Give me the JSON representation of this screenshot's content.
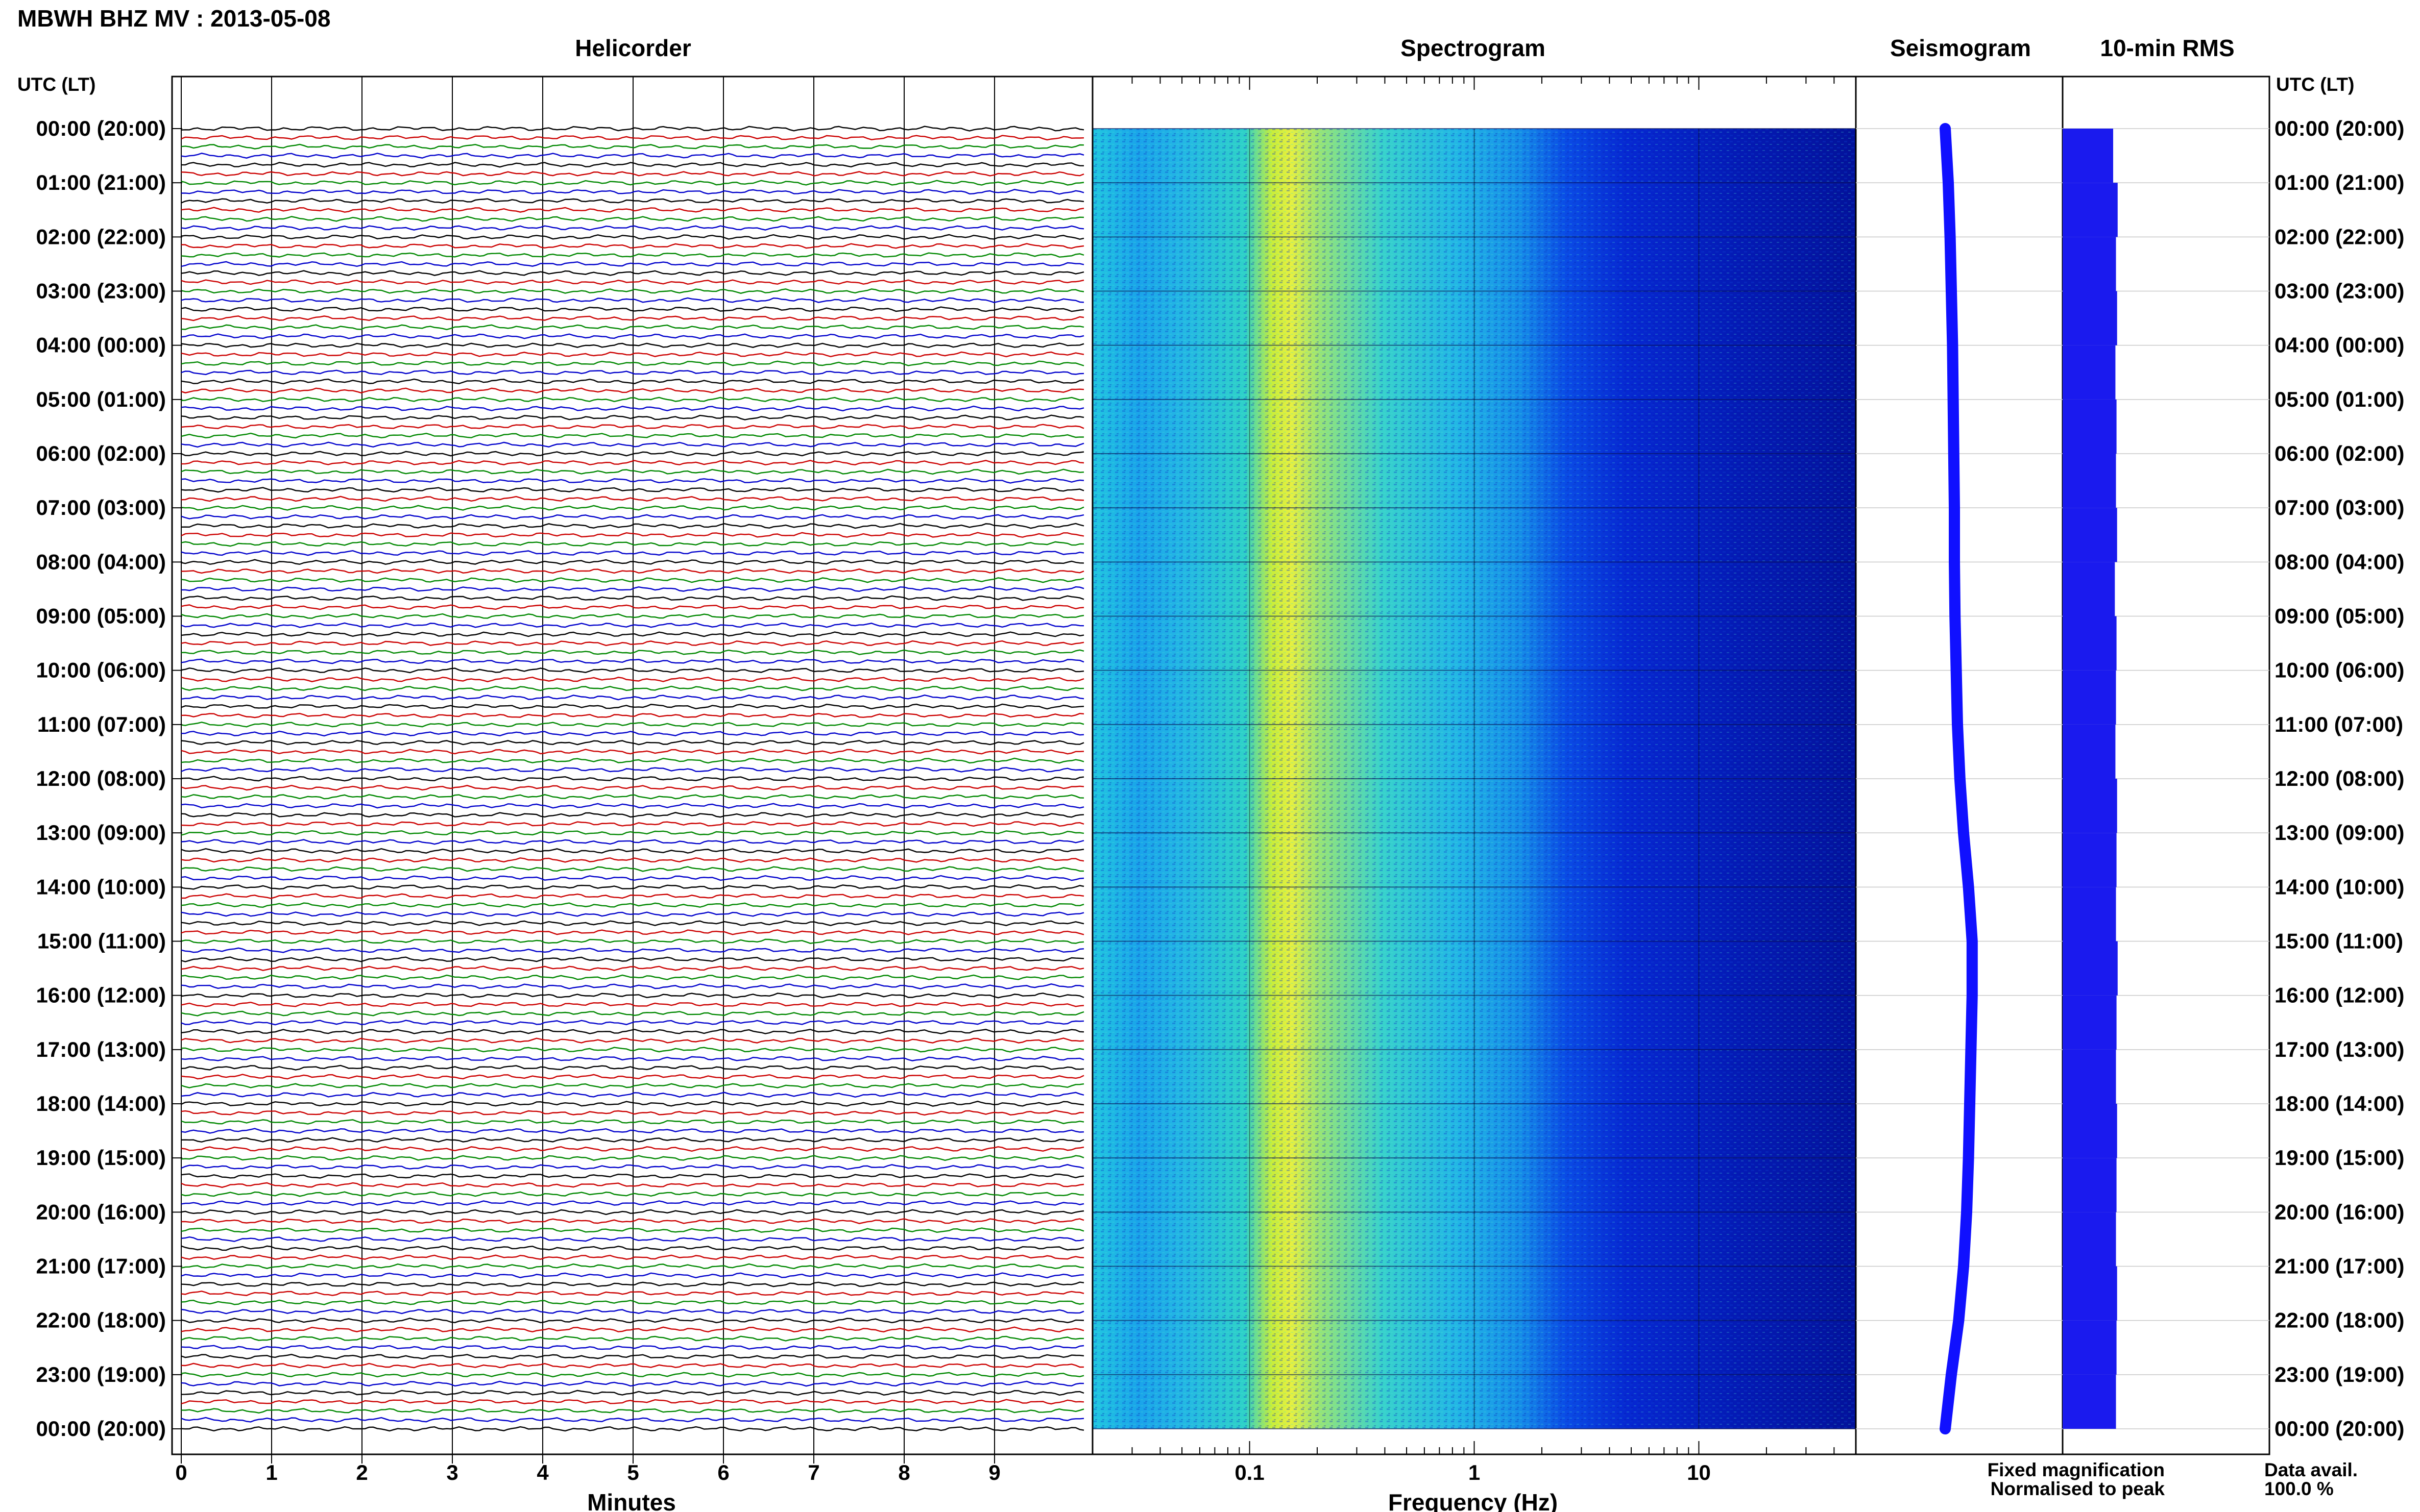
{
  "header": {
    "station_title": "MBWH BHZ MV : 2013-05-08"
  },
  "panels": {
    "helicorder_title": "Helicorder",
    "spectrogram_title": "Spectrogram",
    "seismogram_title": "Seismogram",
    "rms_title": "10-min RMS"
  },
  "axes": {
    "left_time_label": "UTC (LT)",
    "right_time_label": "UTC (LT)",
    "helicorder_xlabel": "Minutes",
    "spectrogram_xlabel": "Frequency (Hz)"
  },
  "legend": {
    "fixed": "Fixed magnification",
    "normalised": "Normalised to peak",
    "fixed_color": "#0000ff",
    "normalised_color": "#ff0000"
  },
  "footer": {
    "data_avail_label": "Data avail.",
    "data_avail_value": "100.0 %"
  },
  "colors": {
    "trace_cycle": [
      "#000000",
      "#cc0000",
      "#008800",
      "#0000cc"
    ],
    "seismogram": "#1010ff",
    "rms_bar": "#1a1aee"
  },
  "chart_data": [
    {
      "type": "line",
      "name": "helicorder",
      "title": "Helicorder",
      "xlabel": "Minutes",
      "x_ticks": [
        0,
        1,
        2,
        3,
        4,
        5,
        6,
        7,
        8,
        9
      ],
      "xlim": [
        0,
        10
      ],
      "rows_per_hour": 6,
      "row_minutes": 10,
      "y_tick_labels": [
        "00:00 (20:00)",
        "01:00 (21:00)",
        "02:00 (22:00)",
        "03:00 (23:00)",
        "04:00 (00:00)",
        "05:00 (01:00)",
        "06:00 (02:00)",
        "07:00 (03:00)",
        "08:00 (04:00)",
        "09:00 (05:00)",
        "10:00 (06:00)",
        "11:00 (07:00)",
        "12:00 (08:00)",
        "13:00 (09:00)",
        "14:00 (10:00)",
        "15:00 (11:00)",
        "16:00 (12:00)",
        "17:00 (13:00)",
        "18:00 (14:00)",
        "19:00 (15:00)",
        "20:00 (16:00)",
        "21:00 (17:00)",
        "22:00 (18:00)",
        "23:00 (19:00)",
        "00:00 (20:00)"
      ]
    },
    {
      "type": "heatmap",
      "name": "spectrogram",
      "title": "Spectrogram",
      "xlabel": "Frequency (Hz)",
      "x_scale": "log",
      "xlim": [
        0.02,
        50
      ],
      "x_tick_labels": [
        "0.1",
        "1",
        "10"
      ],
      "x_ticks": [
        0.1,
        1,
        10
      ],
      "peak_band_hz": [
        0.15,
        0.2
      ],
      "high_energy_below_hz": 3
    },
    {
      "type": "line",
      "name": "seismogram",
      "title": "Seismogram",
      "trace_offset": [
        0,
        0.05,
        0.08,
        0.1,
        0.12,
        0.13,
        0.14,
        0.15,
        0.15,
        0.16,
        0.18,
        0.2,
        0.24,
        0.3,
        0.38,
        0.44,
        0.44,
        0.42,
        0.4,
        0.38,
        0.35,
        0.3,
        0.22,
        0.1,
        0
      ]
    },
    {
      "type": "bar",
      "name": "rms",
      "title": "10-min RMS",
      "orientation": "horizontal",
      "relative_values": [
        0.9,
        0.98,
        0.95,
        0.97,
        0.94,
        0.96,
        0.95,
        0.97,
        0.93,
        0.96,
        0.95,
        0.94,
        0.97,
        0.96,
        0.95,
        0.98,
        0.96,
        0.95,
        0.97,
        0.96,
        0.95,
        0.97,
        0.96,
        0.95
      ]
    }
  ]
}
